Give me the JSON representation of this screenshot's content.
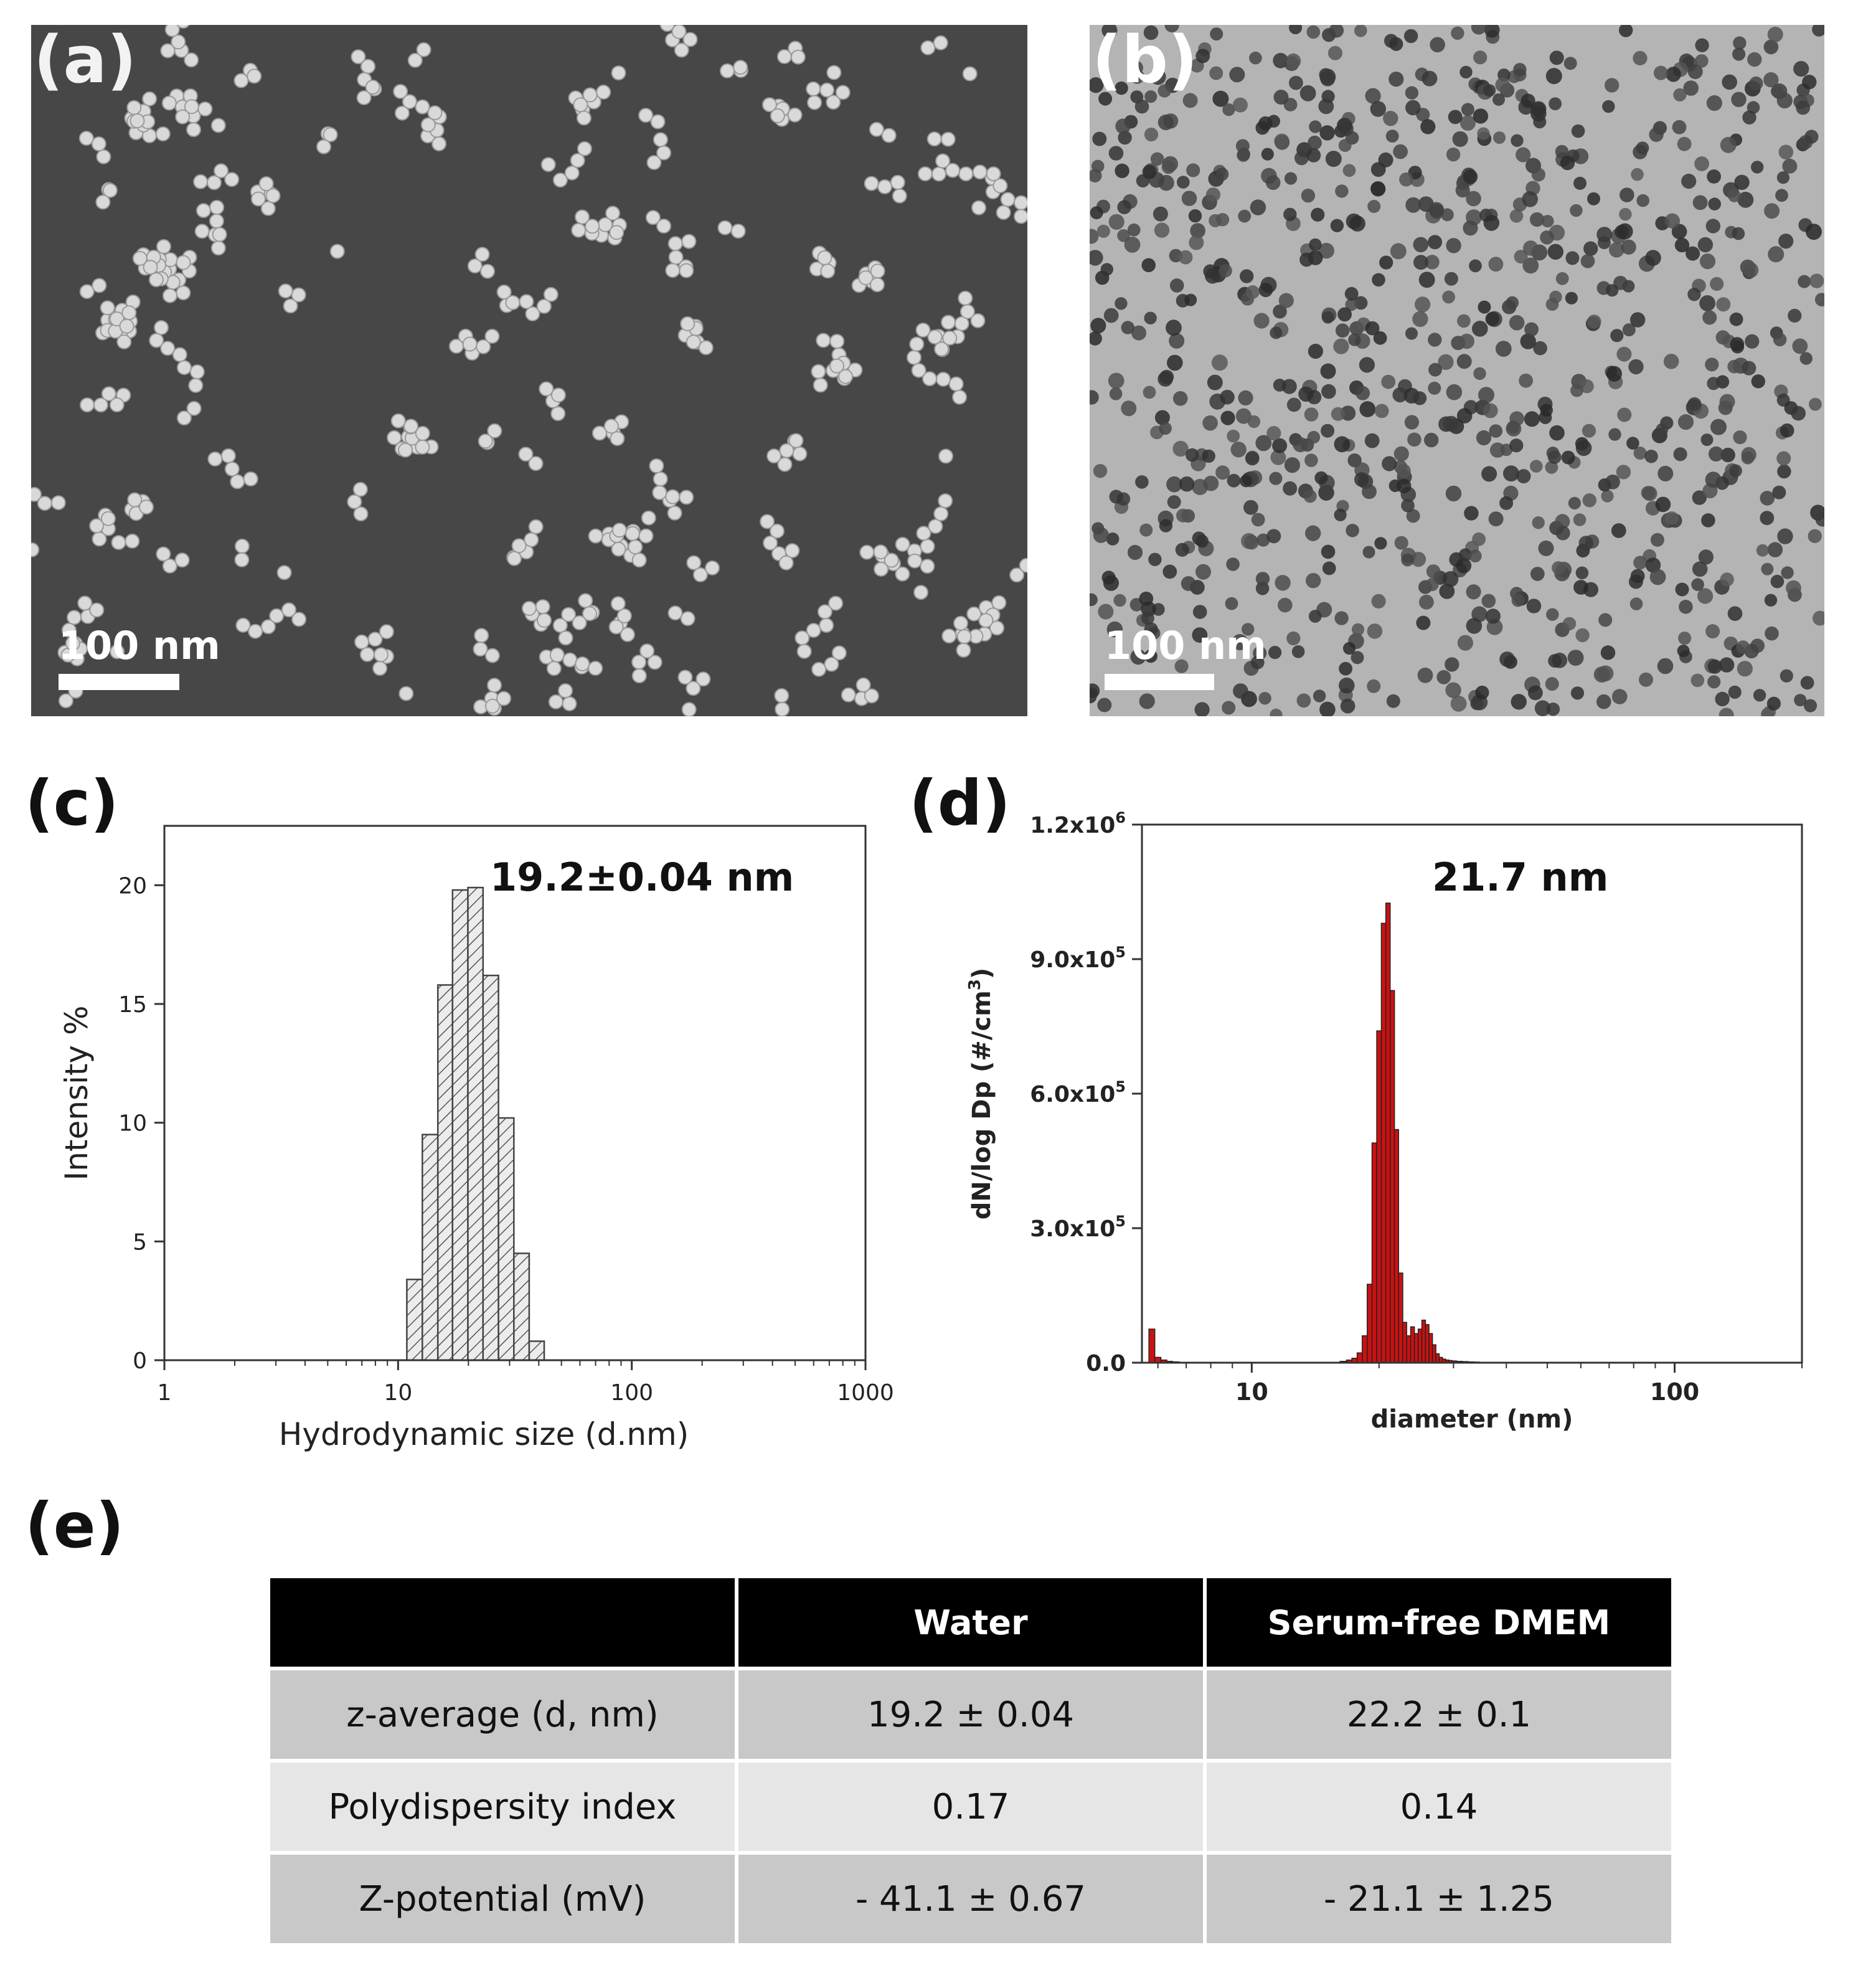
{
  "panels": {
    "a": {
      "label": "(a)",
      "scale_bar": "100 nm"
    },
    "b": {
      "label": "(b)",
      "scale_bar": "100 nm"
    },
    "c": {
      "label": "(c)"
    },
    "d": {
      "label": "(d)"
    },
    "e": {
      "label": "(e)"
    }
  },
  "colors": {
    "sem_background": "#474747",
    "sem_particle": "#d9d9d9",
    "tem_background": "#b4b4b4",
    "tem_particle": "#3e3e3e",
    "hist_c_fill": "#e0e0e0",
    "hist_d_fill": "#cc1111",
    "table_header": "#000000",
    "table_row_dark": "#c8c8c8",
    "table_row_light": "#e6e6e6"
  },
  "chart_data": [
    {
      "panel": "c",
      "type": "bar",
      "title": "",
      "annotation": "19.2±0.04 nm",
      "xlabel": "Hydrodynamic size (d.nm)",
      "ylabel": "Intensity %",
      "x_scale": "log",
      "xlim": [
        1,
        1000
      ],
      "ylim": [
        0,
        22.5
      ],
      "xticks": [
        "1",
        "10",
        "100",
        "1000"
      ],
      "yticks": [
        "0",
        "5",
        "10",
        "15",
        "20"
      ],
      "bars": [
        {
          "left": 10.9,
          "right": 12.7,
          "value": 3.4
        },
        {
          "left": 12.7,
          "right": 14.8,
          "value": 9.5
        },
        {
          "left": 14.8,
          "right": 17.1,
          "value": 15.8
        },
        {
          "left": 17.1,
          "right": 19.9,
          "value": 19.8
        },
        {
          "left": 19.9,
          "right": 23.1,
          "value": 19.9
        },
        {
          "left": 23.1,
          "right": 26.9,
          "value": 16.2
        },
        {
          "left": 26.9,
          "right": 31.3,
          "value": 10.2
        },
        {
          "left": 31.3,
          "right": 36.4,
          "value": 4.5
        },
        {
          "left": 36.4,
          "right": 42.2,
          "value": 0.8
        }
      ],
      "bar_pattern": "diagonal hatch",
      "grid": false
    },
    {
      "panel": "d",
      "type": "bar",
      "title": "",
      "annotation": "21.7 nm",
      "xlabel": "diameter (nm)",
      "ylabel": "dN/log Dp (#/cm",
      "ylabel_sup": "3",
      "ylabel_end": ")",
      "x_scale": "log",
      "xlim": [
        5.5,
        200
      ],
      "ylim": [
        0,
        1200000
      ],
      "xticks": [
        "10",
        "100"
      ],
      "yticks": [
        {
          "base": "0.0",
          "exp": ""
        },
        {
          "base": "3.0x10",
          "exp": "5"
        },
        {
          "base": "6.0x10",
          "exp": "5"
        },
        {
          "base": "9.0x10",
          "exp": "5"
        },
        {
          "base": "1.2x10",
          "exp": "6"
        }
      ],
      "x": [
        5.8,
        6.0,
        6.2,
        6.4,
        6.6,
        16.5,
        17.0,
        17.5,
        18.0,
        18.5,
        19.0,
        19.5,
        20.0,
        20.5,
        21.0,
        21.5,
        22.0,
        22.5,
        23.0,
        23.5,
        24.0,
        24.5,
        25.0,
        25.5,
        26.0,
        26.5,
        27.0,
        27.5,
        28.0,
        28.5,
        29.0,
        29.5,
        30.0,
        31.0,
        32.0,
        33.0,
        34.0
      ],
      "values": [
        75000,
        12000,
        6000,
        3000,
        2000,
        3000,
        6000,
        10000,
        22000,
        60000,
        175000,
        490000,
        740000,
        980000,
        1025000,
        830000,
        520000,
        200000,
        90000,
        60000,
        80000,
        65000,
        75000,
        95000,
        85000,
        65000,
        40000,
        20000,
        12000,
        8000,
        6000,
        5000,
        4000,
        3000,
        2500,
        2000,
        1500
      ],
      "grid": false
    },
    {
      "panel": "e",
      "type": "table",
      "columns": [
        "",
        "Water",
        "Serum-free DMEM"
      ],
      "rows": [
        [
          "z-average (d, nm)",
          "19.2 ± 0.04",
          "22.2 ± 0.1"
        ],
        [
          "Polydispersity index",
          "0.17",
          "0.14"
        ],
        [
          "Z-potential (mV)",
          "- 41.1 ± 0.67",
          "- 21.1 ± 1.25"
        ]
      ]
    }
  ]
}
